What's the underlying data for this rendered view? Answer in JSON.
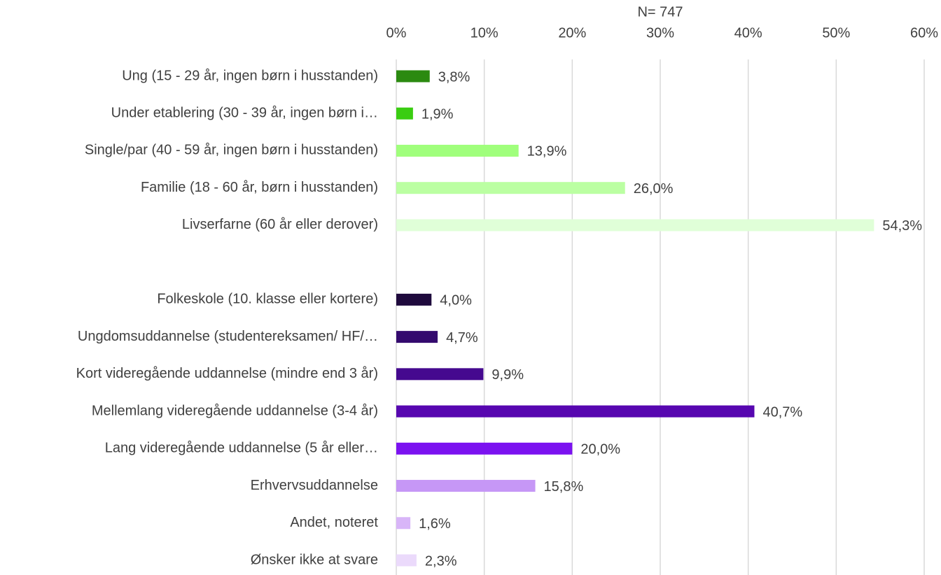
{
  "chart_data": {
    "type": "hbar",
    "title": "N= 747",
    "categories": [
      "Ung (15 - 29 år, ingen børn i husstanden)",
      "Under etablering (30 - 39 år, ingen børn i…",
      "Single/par (40 - 59 år, ingen børn i husstanden)",
      "Familie (18 - 60 år, børn i husstanden)",
      "Livserfarne (60 år eller derover)",
      null,
      "Folkeskole (10. klasse eller kortere)",
      "Ungdomsuddannelse (studentereksamen/ HF/…",
      "Kort videregående uddannelse (mindre end 3 år)",
      "Mellemlang videregående uddannelse (3-4 år)",
      "Lang videregående uddannelse (5 år eller…",
      "Erhvervsuddannelse",
      "Andet, noteret",
      "Ønsker ikke at svare"
    ],
    "values": [
      3.8,
      1.9,
      13.9,
      26.0,
      54.3,
      null,
      4.0,
      4.7,
      9.9,
      40.7,
      20.0,
      15.8,
      1.6,
      2.3
    ],
    "value_labels": [
      "3,8%",
      "1,9%",
      "13,9%",
      "26,0%",
      "54,3%",
      null,
      "4,0%",
      "4,7%",
      "9,9%",
      "40,7%",
      "20,0%",
      "15,8%",
      "1,6%",
      "2,3%"
    ],
    "colors": [
      "#2b8a10",
      "#3acd12",
      "#a0ff7c",
      "#bbffa2",
      "#e0ffd8",
      null,
      "#1f0a3d",
      "#340a6e",
      "#45098f",
      "#5707b0",
      "#7b12f0",
      "#c697f6",
      "#d8b5f8",
      "#ebdafb"
    ],
    "xlim": [
      0,
      60
    ],
    "xticks": [
      {
        "value": 0,
        "label": "0%"
      },
      {
        "value": 10,
        "label": "10%"
      },
      {
        "value": 20,
        "label": "20%"
      },
      {
        "value": 30,
        "label": "30%"
      },
      {
        "value": 40,
        "label": "40%"
      },
      {
        "value": 50,
        "label": "50%"
      },
      {
        "value": 60,
        "label": "60%"
      }
    ],
    "grid": true
  }
}
